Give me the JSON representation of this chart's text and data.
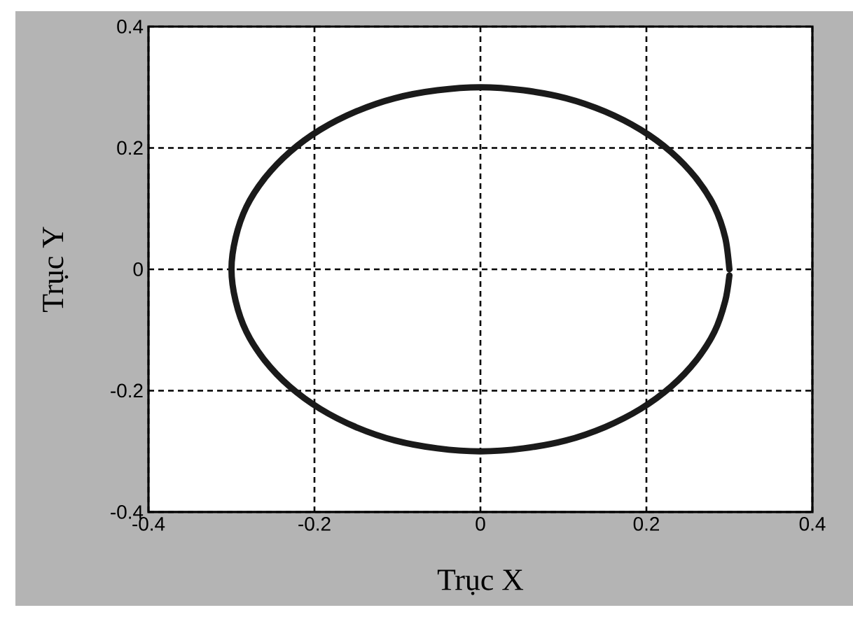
{
  "chart_data": {
    "type": "line",
    "xlabel": "Trục X",
    "ylabel": "Trục Y",
    "series": [
      {
        "color": "#1a1a1a",
        "x": [
          0.3,
          0.295,
          0.282,
          0.26,
          0.23,
          0.193,
          0.15,
          0.103,
          0.052,
          0,
          -0.052,
          -0.103,
          -0.15,
          -0.193,
          -0.23,
          -0.26,
          -0.282,
          -0.295,
          -0.3,
          -0.295,
          -0.282,
          -0.26,
          -0.23,
          -0.193,
          -0.15,
          -0.103,
          -0.052,
          0,
          0.052,
          0.103,
          0.15,
          0.193,
          0.23,
          0.26,
          0.282,
          0.295,
          0.3
        ],
        "values": [
          0,
          0.052,
          0.103,
          0.15,
          0.193,
          0.23,
          0.26,
          0.282,
          0.295,
          0.3,
          0.295,
          0.282,
          0.26,
          0.23,
          0.193,
          0.15,
          0.103,
          0.052,
          0,
          -0.052,
          -0.103,
          -0.15,
          -0.193,
          -0.23,
          -0.26,
          -0.282,
          -0.295,
          -0.3,
          -0.295,
          -0.282,
          -0.26,
          -0.23,
          -0.193,
          -0.15,
          -0.103,
          -0.052,
          -0.01
        ]
      }
    ],
    "xlim": [
      -0.4,
      0.4
    ],
    "ylim": [
      -0.4,
      0.4
    ],
    "xticks": [
      -0.4,
      -0.2,
      0,
      0.2,
      0.4
    ],
    "yticks": [
      -0.4,
      -0.2,
      0,
      0.2,
      0.4
    ],
    "grid": true,
    "marker": "none",
    "line_style": "solid"
  }
}
